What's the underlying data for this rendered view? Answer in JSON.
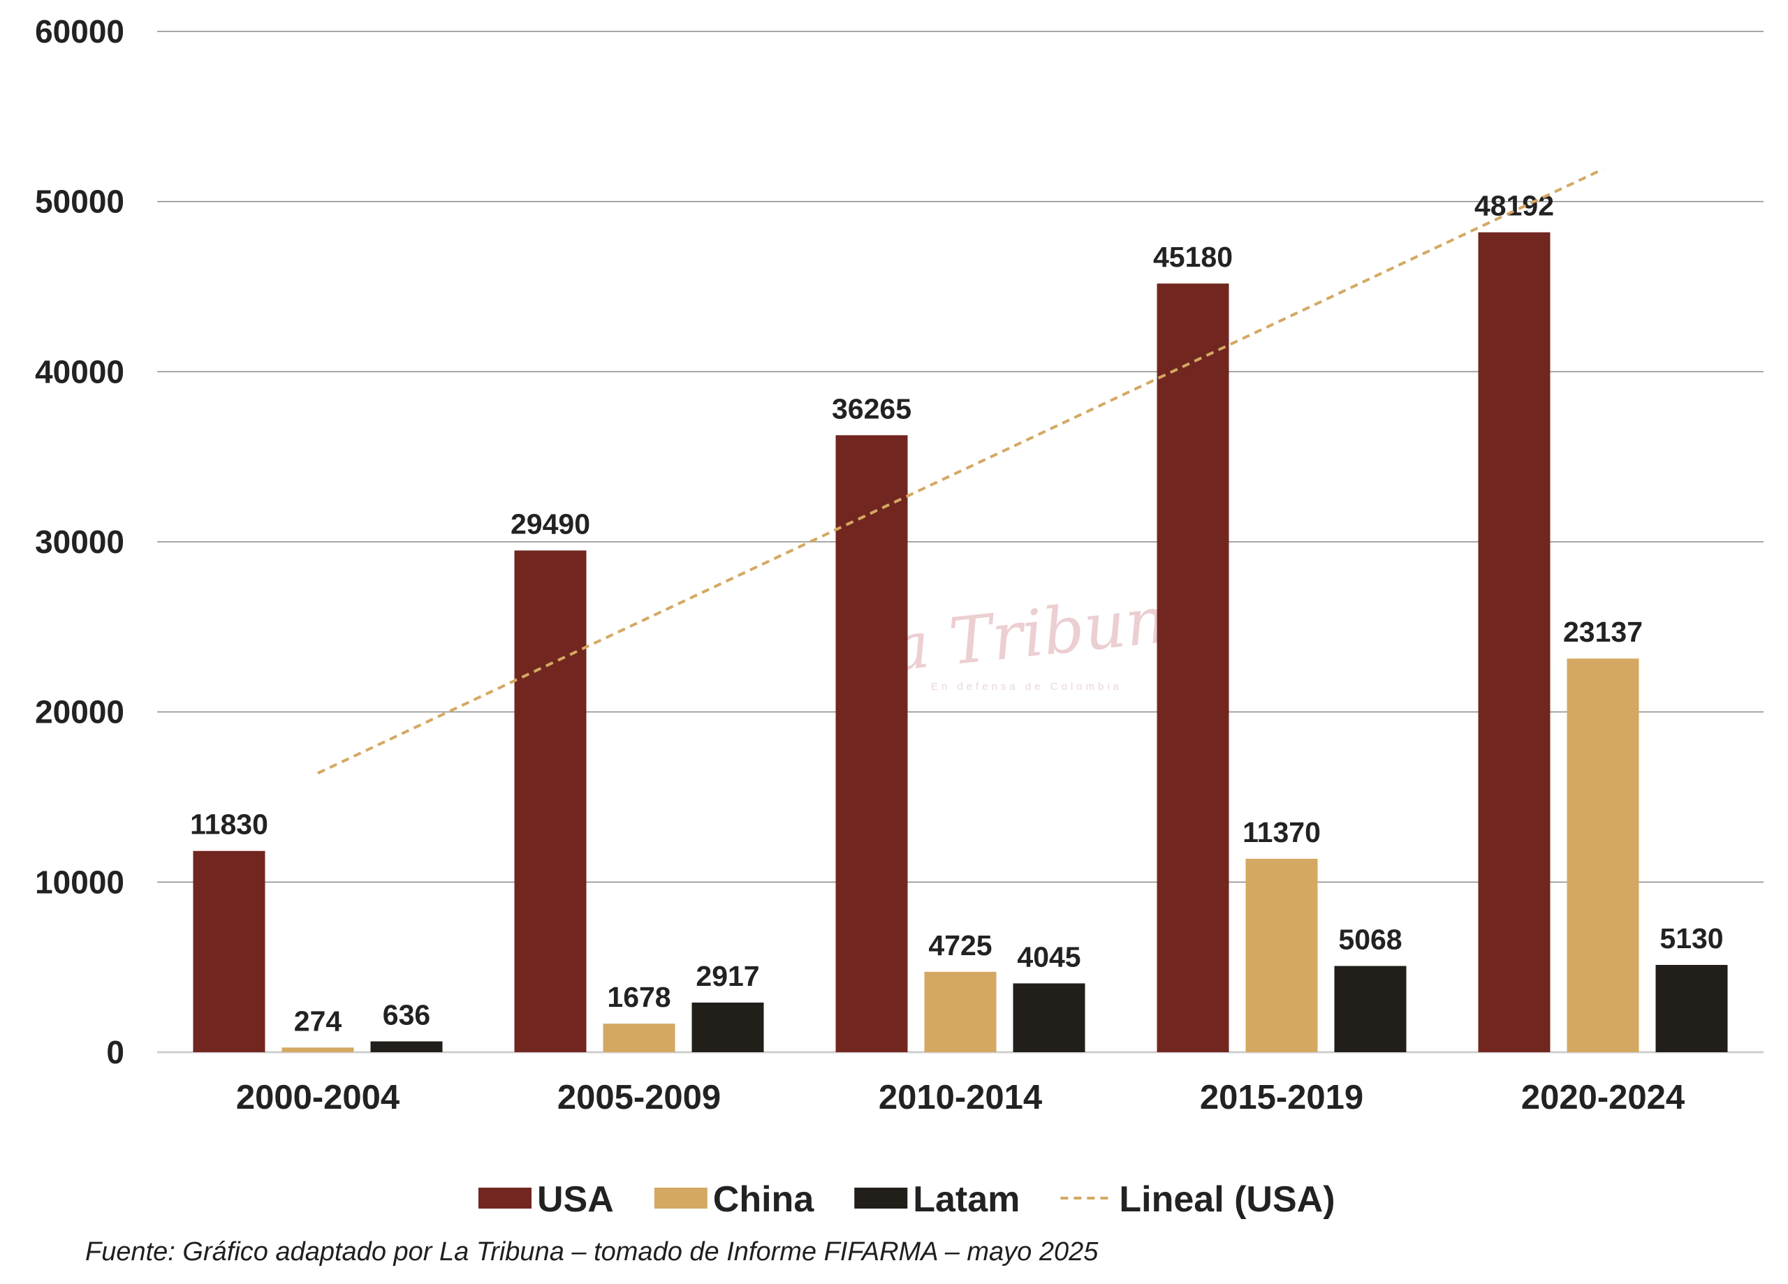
{
  "chart_data": {
    "type": "bar",
    "categories": [
      "2000-2004",
      "2005-2009",
      "2010-2014",
      "2015-2019",
      "2020-2024"
    ],
    "series": [
      {
        "name": "USA",
        "color": "#722620",
        "values": [
          11830,
          29490,
          36265,
          45180,
          48192
        ]
      },
      {
        "name": "China",
        "color": "#d4a862",
        "values": [
          274,
          1678,
          4725,
          11370,
          23137
        ]
      },
      {
        "name": "Latam",
        "color": "#221f1b",
        "values": [
          636,
          2917,
          4045,
          5068,
          5130
        ]
      }
    ],
    "trendline": {
      "name": "Lineal (USA)",
      "series": "USA",
      "type": "linear",
      "color": "#d4a862",
      "start": [
        0,
        16400
      ],
      "end": [
        4,
        51900
      ]
    },
    "yticks": [
      0,
      10000,
      20000,
      30000,
      40000,
      50000,
      60000
    ],
    "ylim": [
      0,
      60000
    ],
    "grid": true,
    "legend": "bottom",
    "title": "",
    "xlabel": "",
    "ylabel": ""
  },
  "watermark": {
    "name": "La Tribuna",
    "tagline": "En defensa de Colombia"
  },
  "source": "Fuente: Gráfico adaptado por La Tribuna – tomado de Informe FIFARMA – mayo 2025"
}
